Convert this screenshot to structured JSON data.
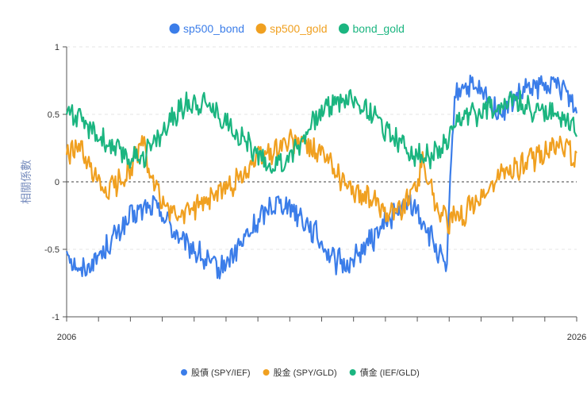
{
  "chart_data": {
    "type": "line",
    "title": "",
    "xlabel": "",
    "ylabel": "相關係數",
    "xlim": [
      2006,
      2026
    ],
    "ylim": [
      -1,
      1
    ],
    "y_ticks": [
      "1",
      "0.5",
      "0",
      "-0.5",
      "-1"
    ],
    "x_tick_labels": [
      "2006",
      "2026"
    ],
    "top_legend": [
      "sp500_bond",
      "sp500_gold",
      "bond_gold"
    ],
    "bottom_legend": [
      "股債 (SPY/IEF)",
      "股金 (SPY/GLD)",
      "債金 (IEF/GLD)"
    ],
    "colors": [
      "#3b7de9",
      "#f0a020",
      "#1bb580"
    ],
    "series": [
      {
        "name": "sp500_bond",
        "x": [
          2006.0,
          2006.5,
          2007.0,
          2007.5,
          2008.0,
          2008.5,
          2009.0,
          2009.5,
          2010.0,
          2010.5,
          2011.0,
          2011.5,
          2012.0,
          2012.5,
          2013.0,
          2013.5,
          2014.0,
          2014.5,
          2015.0,
          2015.5,
          2016.0,
          2016.5,
          2017.0,
          2017.5,
          2018.0,
          2018.5,
          2019.0,
          2019.5,
          2020.0,
          2020.5,
          2020.9,
          2021.0,
          2021.2,
          2021.5,
          2022.0,
          2022.5,
          2023.0,
          2023.5,
          2024.0,
          2024.5,
          2025.0,
          2025.5,
          2026.0
        ],
        "values": [
          -0.5,
          -0.67,
          -0.6,
          -0.5,
          -0.38,
          -0.27,
          -0.2,
          -0.18,
          -0.3,
          -0.45,
          -0.5,
          -0.6,
          -0.65,
          -0.55,
          -0.42,
          -0.3,
          -0.17,
          -0.15,
          -0.22,
          -0.32,
          -0.45,
          -0.58,
          -0.62,
          -0.52,
          -0.42,
          -0.3,
          -0.22,
          -0.15,
          -0.3,
          -0.5,
          -0.67,
          -0.2,
          0.6,
          0.72,
          0.68,
          0.62,
          0.5,
          0.6,
          0.68,
          0.7,
          0.72,
          0.7,
          0.53
        ]
      },
      {
        "name": "sp500_gold",
        "x": [
          2006.0,
          2006.5,
          2007.0,
          2007.5,
          2008.0,
          2008.5,
          2009.0,
          2009.2,
          2009.5,
          2010.0,
          2010.5,
          2011.0,
          2011.5,
          2012.0,
          2012.5,
          2013.0,
          2013.5,
          2014.0,
          2014.5,
          2015.0,
          2015.5,
          2016.0,
          2016.5,
          2017.0,
          2017.5,
          2018.0,
          2018.5,
          2019.0,
          2019.5,
          2020.0,
          2020.5,
          2021.0,
          2021.5,
          2022.0,
          2022.5,
          2023.0,
          2023.5,
          2024.0,
          2024.5,
          2025.0,
          2025.5,
          2026.0
        ],
        "values": [
          0.2,
          0.25,
          0.05,
          -0.08,
          0.0,
          0.1,
          0.3,
          0.1,
          -0.05,
          -0.22,
          -0.25,
          -0.2,
          -0.12,
          -0.08,
          -0.02,
          0.08,
          0.18,
          0.22,
          0.28,
          0.3,
          0.26,
          0.2,
          0.1,
          -0.03,
          -0.1,
          -0.15,
          -0.2,
          -0.22,
          -0.1,
          0.15,
          -0.18,
          -0.3,
          -0.25,
          -0.15,
          -0.08,
          0.05,
          0.1,
          0.12,
          0.2,
          0.24,
          0.28,
          0.14
        ]
      },
      {
        "name": "bond_gold",
        "x": [
          2006.0,
          2006.5,
          2007.0,
          2007.5,
          2008.0,
          2008.5,
          2009.0,
          2009.5,
          2010.0,
          2010.5,
          2011.0,
          2011.5,
          2012.0,
          2012.5,
          2013.0,
          2013.5,
          2014.0,
          2014.5,
          2015.0,
          2015.5,
          2016.0,
          2016.5,
          2017.0,
          2017.5,
          2018.0,
          2018.5,
          2019.0,
          2019.5,
          2020.0,
          2020.5,
          2021.0,
          2021.5,
          2022.0,
          2022.5,
          2023.0,
          2023.5,
          2024.0,
          2024.5,
          2025.0,
          2025.5,
          2026.0
        ],
        "values": [
          0.55,
          0.45,
          0.38,
          0.3,
          0.22,
          0.18,
          0.2,
          0.3,
          0.42,
          0.55,
          0.6,
          0.58,
          0.5,
          0.4,
          0.3,
          0.2,
          0.12,
          0.15,
          0.25,
          0.4,
          0.52,
          0.6,
          0.62,
          0.58,
          0.5,
          0.4,
          0.3,
          0.22,
          0.18,
          0.2,
          0.3,
          0.48,
          0.5,
          0.55,
          0.58,
          0.6,
          0.55,
          0.52,
          0.5,
          0.48,
          0.4
        ]
      }
    ]
  }
}
